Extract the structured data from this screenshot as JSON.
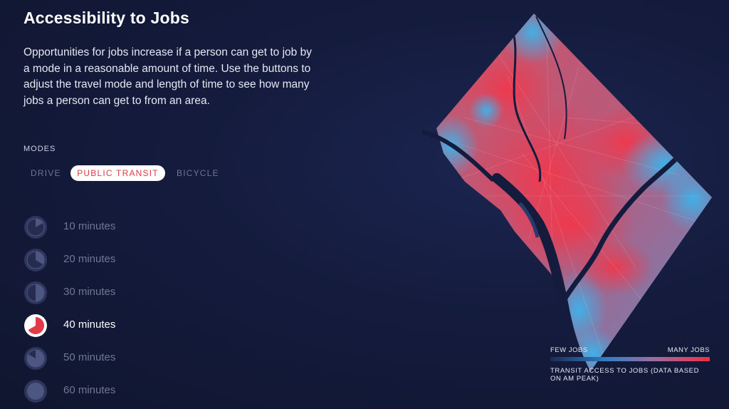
{
  "title": "Accessibility to Jobs",
  "description": "Opportunities for jobs increase if a person can get to job by a mode in a reasonable amount of time. Use the buttons to adjust the travel mode and length of time to see how many jobs a person can get to from an area.",
  "modes_label": "MODES",
  "modes": [
    {
      "label": "DRIVE",
      "selected": false
    },
    {
      "label": "PUBLIC TRANSIT",
      "selected": true
    },
    {
      "label": "BICYCLE",
      "selected": false
    }
  ],
  "times": [
    {
      "label": "10 minutes",
      "fraction": 0.167,
      "selected": false
    },
    {
      "label": "20 minutes",
      "fraction": 0.333,
      "selected": false
    },
    {
      "label": "30 minutes",
      "fraction": 0.5,
      "selected": false
    },
    {
      "label": "40 minutes",
      "fraction": 0.667,
      "selected": true
    },
    {
      "label": "50 minutes",
      "fraction": 0.833,
      "selected": false
    },
    {
      "label": "60 minutes",
      "fraction": 1.0,
      "selected": false
    }
  ],
  "legend": {
    "low_label": "FEW JOBS",
    "high_label": "MANY JOBS",
    "caption": "TRANSIT ACCESS TO JOBS (DATA BASED ON AM PEAK)"
  },
  "colors": {
    "accent": "#e23a49",
    "high": "#ef2f45",
    "low": "#3aa9e6",
    "water": "#141b3d"
  }
}
